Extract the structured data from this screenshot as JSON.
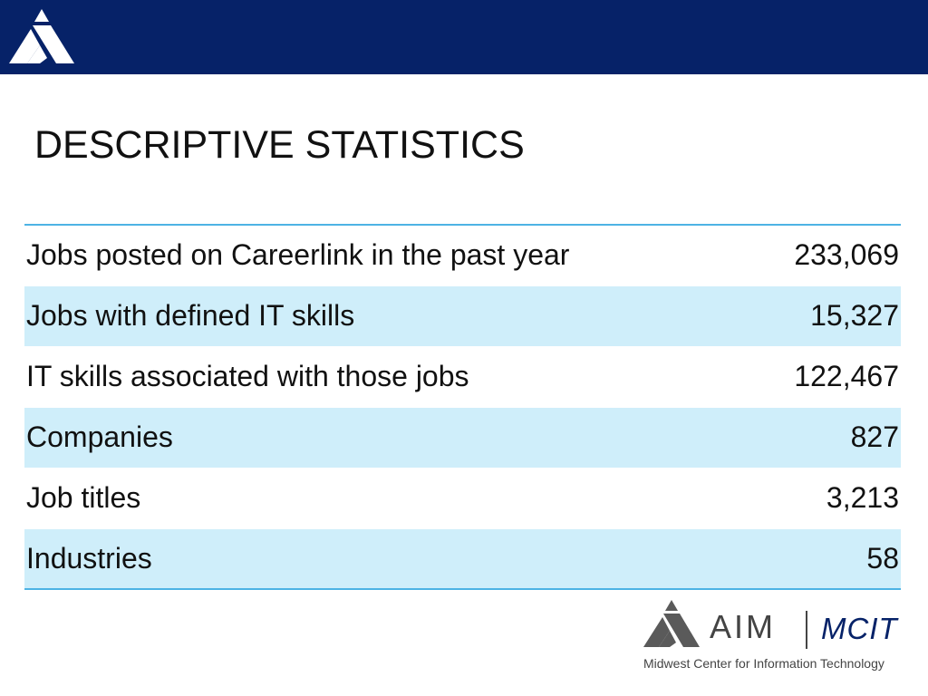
{
  "slide": {
    "title": "DESCRIPTIVE STATISTICS"
  },
  "stats": [
    {
      "label": "Jobs posted on Careerlink in the past year",
      "value": "233,069"
    },
    {
      "label": "Jobs with defined IT skills",
      "value": "15,327"
    },
    {
      "label": "IT skills associated with those jobs",
      "value": "122,467"
    },
    {
      "label": "Companies",
      "value": "827"
    },
    {
      "label": "Job titles",
      "value": "3,213"
    },
    {
      "label": "Industries",
      "value": "58"
    }
  ],
  "footer": {
    "brand": "AIM",
    "sub_brand": "MCIT",
    "tagline": "Midwest Center for Information Technology"
  },
  "colors": {
    "header_bar": "#062268",
    "row_shade": "#cfeefa",
    "rule": "#4db3e4",
    "logo_gray": "#5a5a5a"
  },
  "icons": {
    "header_logo": "aim-triangle-logo",
    "footer_logo": "aim-triangle-logo"
  }
}
